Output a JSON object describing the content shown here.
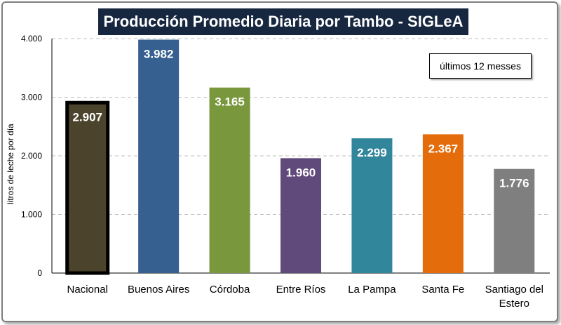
{
  "chart_data": {
    "type": "bar",
    "title": "Producción Promedio Diaria por Tambo - SIGLeA",
    "annotation": "últimos 12 messes",
    "ylabel": "litros de leche por día",
    "ylim": [
      0,
      4000
    ],
    "yticks": [
      "0",
      "1.000",
      "2.000",
      "3.000",
      "4.000"
    ],
    "ytick_values": [
      0,
      1000,
      2000,
      3000,
      4000
    ],
    "grid": true,
    "categories": [
      [
        "Nacional"
      ],
      [
        "Buenos Aires"
      ],
      [
        "Córdoba"
      ],
      [
        "Entre Ríos"
      ],
      [
        "La Pampa"
      ],
      [
        "Santa Fe"
      ],
      [
        "Santiago del",
        "Estero"
      ]
    ],
    "values": [
      2907,
      3982,
      3165,
      1960,
      2299,
      2367,
      1776
    ],
    "value_labels": [
      "2.907",
      "3.982",
      "3.165",
      "1.960",
      "2.299",
      "2.367",
      "1.776"
    ],
    "colors": [
      "#4b432b",
      "#35608f",
      "#79973c",
      "#604a7b",
      "#31869b",
      "#e46c0a",
      "#7f7f7f"
    ],
    "highlight_border_color": "#000000"
  }
}
